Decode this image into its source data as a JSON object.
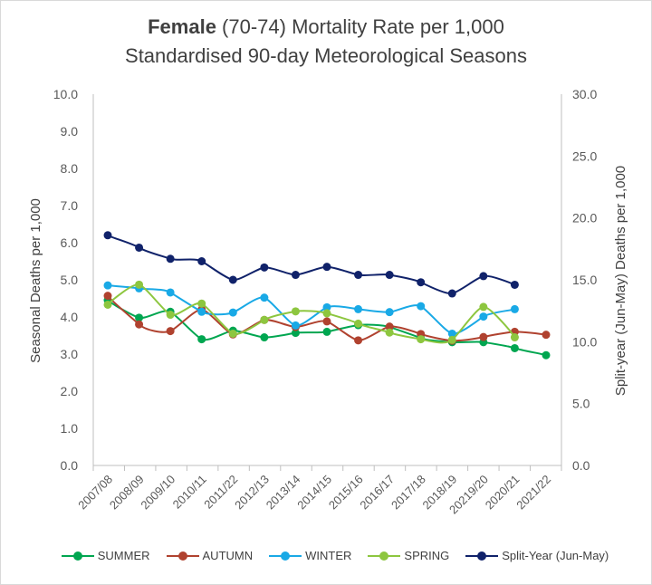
{
  "title": {
    "bold": "Female",
    "rest_line1": " (70-74) Mortality Rate per 1,000",
    "line2": "Standardised 90-day Meteorological Seasons"
  },
  "chart_data": {
    "type": "line",
    "title": "Female (70-74) Mortality Rate per 1,000 Standardised 90-day Meteorological Seasons",
    "ylabel": "Seasonal Deaths per 1,000",
    "y2label": "Split-year (Jun-May)  Deaths per 1,000",
    "ylim": [
      0,
      10
    ],
    "y2lim": [
      0,
      30
    ],
    "yticks": [
      "0.0",
      "1.0",
      "2.0",
      "3.0",
      "4.0",
      "5.0",
      "6.0",
      "7.0",
      "8.0",
      "9.0",
      "10.0"
    ],
    "y2ticks": [
      "0.0",
      "5.0",
      "10.0",
      "15.0",
      "20.0",
      "25.0",
      "30.0"
    ],
    "categories": [
      "2007/08",
      "2008/09",
      "2009/10",
      "2010/11",
      "2011/22",
      "2012/13",
      "2013/14",
      "2014/15",
      "2015/16",
      "2016/17",
      "2017/18",
      "2018/19",
      "20219/20",
      "2020/21",
      "2021/22"
    ],
    "grid": false,
    "legend_position": "bottom",
    "series": [
      {
        "name": "SUMMER",
        "color": "#00a650",
        "axis": "left",
        "values": [
          4.45,
          3.98,
          4.14,
          3.4,
          3.63,
          3.45,
          3.57,
          3.6,
          3.78,
          3.73,
          3.43,
          3.32,
          3.32,
          3.16,
          2.97
        ]
      },
      {
        "name": "AUTUMN",
        "color": "#b0422f",
        "axis": "left",
        "values": [
          4.57,
          3.8,
          3.62,
          4.2,
          3.53,
          3.92,
          3.73,
          3.88,
          3.37,
          3.74,
          3.54,
          3.36,
          3.46,
          3.6,
          3.52
        ]
      },
      {
        "name": "WINTER",
        "color": "#19a9e6",
        "axis": "left",
        "values": [
          4.85,
          4.77,
          4.66,
          4.14,
          4.12,
          4.52,
          3.77,
          4.26,
          4.21,
          4.13,
          4.29,
          3.55,
          4.01,
          4.21,
          null
        ]
      },
      {
        "name": "SPRING",
        "color": "#8dc63f",
        "axis": "left",
        "values": [
          4.33,
          4.87,
          4.06,
          4.36,
          3.55,
          3.92,
          4.15,
          4.1,
          3.82,
          3.58,
          3.4,
          3.38,
          4.27,
          3.45,
          null
        ]
      },
      {
        "name": "Split-Year (Jun-May)",
        "color": "#10226a",
        "axis": "right",
        "values": [
          18.6,
          17.6,
          16.7,
          16.5,
          15.0,
          16.0,
          15.4,
          16.05,
          15.4,
          15.4,
          14.8,
          13.9,
          15.3,
          14.6,
          null
        ]
      }
    ]
  }
}
